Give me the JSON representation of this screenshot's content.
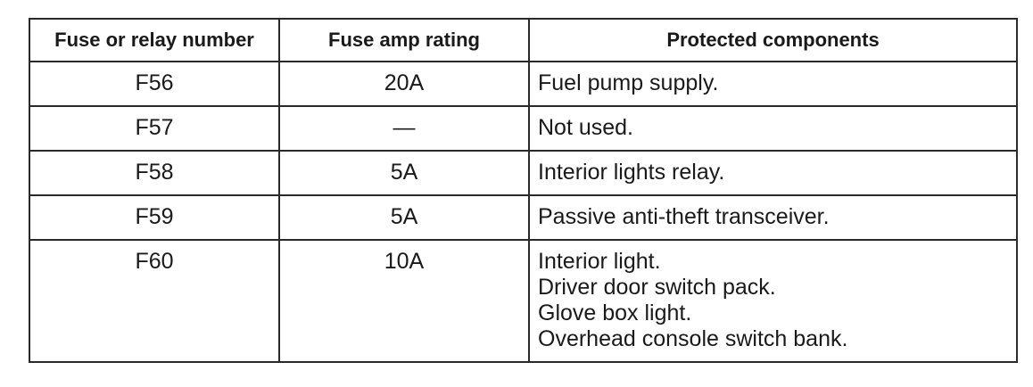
{
  "table": {
    "headers": [
      "Fuse or relay number",
      "Fuse amp rating",
      "Protected components"
    ],
    "rows": [
      {
        "fuse": "F56",
        "amps": "20A",
        "components": [
          "Fuel pump supply."
        ]
      },
      {
        "fuse": "F57",
        "amps": "—",
        "components": [
          "Not used."
        ]
      },
      {
        "fuse": "F58",
        "amps": "5A",
        "components": [
          "Interior lights relay."
        ]
      },
      {
        "fuse": "F59",
        "amps": "5A",
        "components": [
          "Passive anti-theft transceiver."
        ]
      },
      {
        "fuse": "F60",
        "amps": "10A",
        "components": [
          "Interior light.",
          "Driver door switch pack.",
          "Glove box light.",
          "Overhead console switch bank."
        ]
      }
    ]
  }
}
